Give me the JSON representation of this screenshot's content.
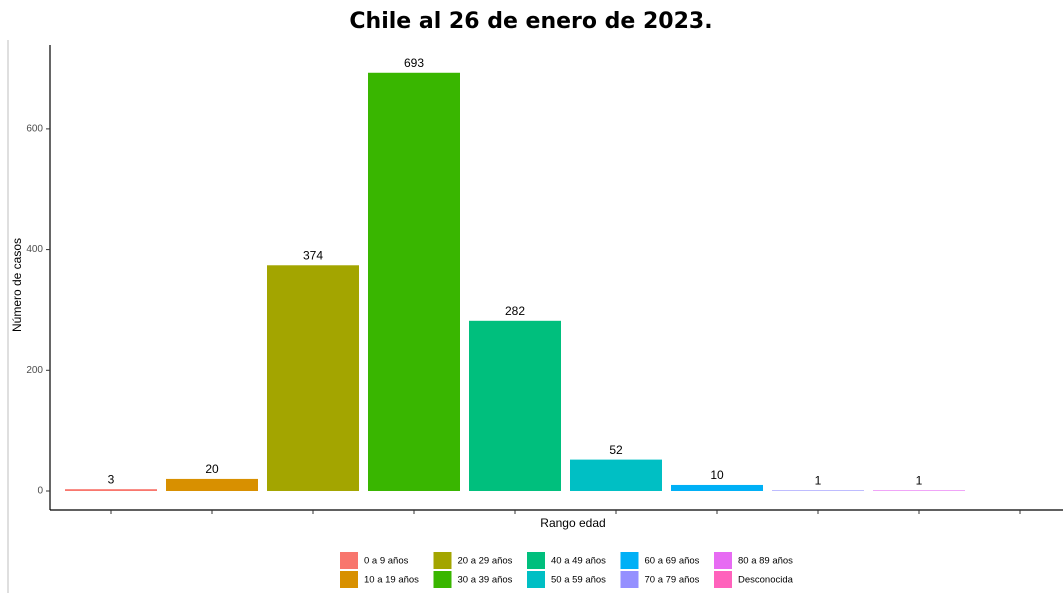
{
  "chart_data": {
    "type": "bar",
    "title": "Chile al 26 de enero de 2023.",
    "x_label": "Rango edad",
    "y_label": "Número de casos",
    "categories": [
      "0 a 9 años",
      "10 a 19 años",
      "20 a 29 años",
      "30 a 39 años",
      "40 a 49 años",
      "50 a 59 años",
      "60 a 69 años",
      "70 a 79 años",
      "80 a 89 años",
      "Desconocida"
    ],
    "values": [
      3,
      20,
      374,
      693,
      282,
      52,
      10,
      1,
      1,
      null
    ],
    "colors": [
      "#F8766D",
      "#D89000",
      "#A3A500",
      "#39B600",
      "#00BF7D",
      "#00BFC4",
      "#00B0F6",
      "#9590FF",
      "#E76BF3",
      "#FF62BC"
    ],
    "ylim": [
      -31.5,
      739
    ],
    "yticks": [
      0,
      200,
      400,
      600
    ],
    "grid": false
  }
}
